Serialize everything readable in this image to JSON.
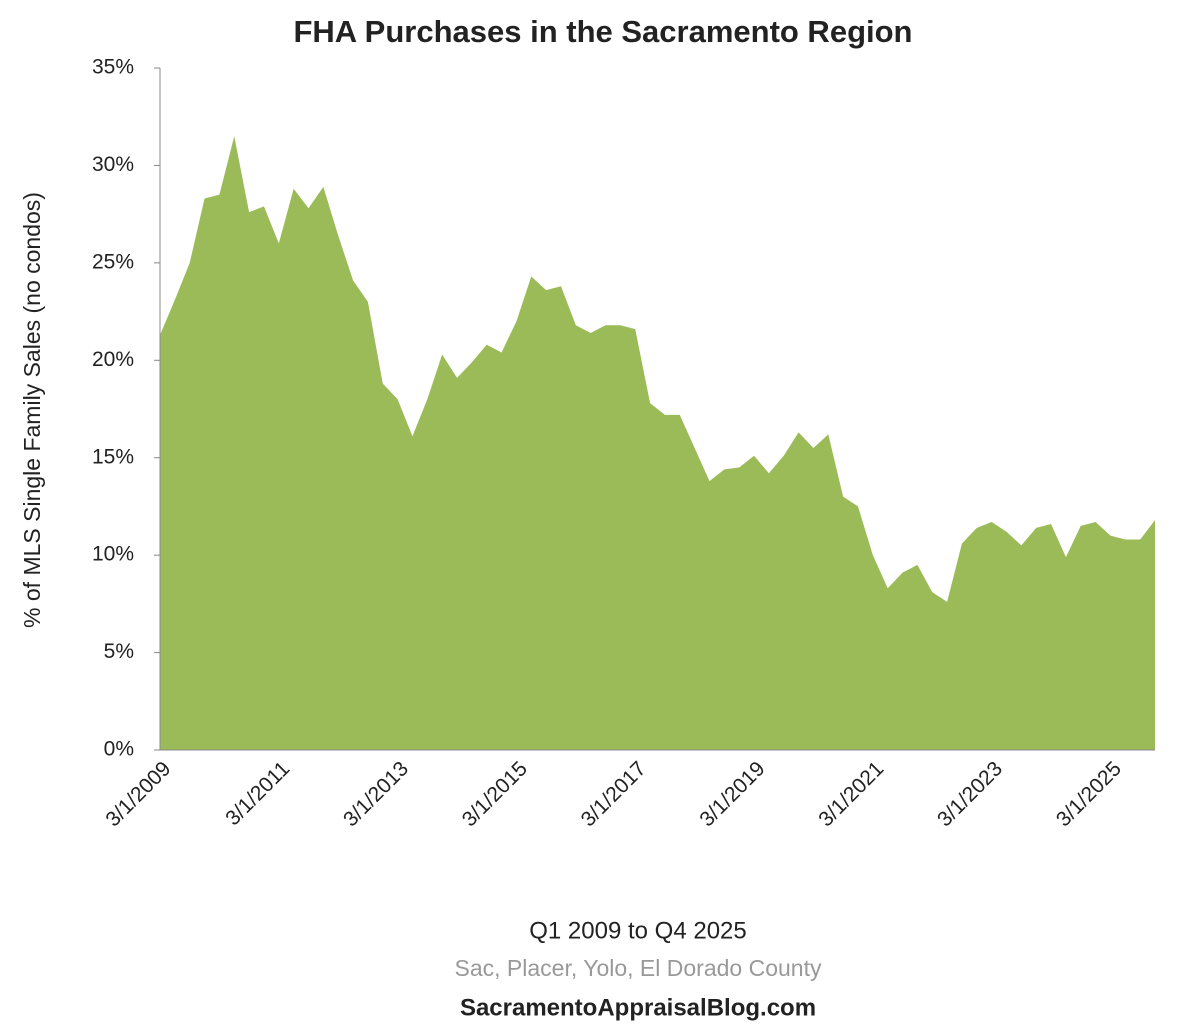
{
  "chart_data": {
    "type": "area",
    "title": "FHA Purchases in the Sacramento Region",
    "y_label": "% of MLS Single Family Sales (no condos)",
    "x_label": "Q1 2009 to Q4 2025",
    "subtitle": "Sac, Placer,  Yolo, El Dorado County",
    "source": "SacramentoAppraisalBlog.com",
    "color": "#9bbb59",
    "categories": [
      "3/1/2009",
      null,
      null,
      null,
      null,
      null,
      null,
      null,
      "3/1/2011",
      null,
      null,
      null,
      null,
      null,
      null,
      null,
      "3/1/2013",
      null,
      null,
      null,
      null,
      null,
      null,
      null,
      "3/1/2015",
      null,
      null,
      null,
      null,
      null,
      null,
      null,
      "3/1/2017",
      null,
      null,
      null,
      null,
      null,
      null,
      null,
      "3/1/2019",
      null,
      null,
      null,
      null,
      null,
      null,
      null,
      "3/1/2021",
      null,
      null,
      null,
      null,
      null,
      null,
      null,
      "3/1/2023",
      null,
      null,
      null,
      null,
      null,
      null,
      null,
      "3/1/2025",
      null,
      null,
      null
    ],
    "values": [
      21.3,
      23.1,
      25.0,
      28.3,
      28.5,
      31.5,
      27.6,
      27.9,
      26.0,
      28.8,
      27.8,
      28.9,
      26.4,
      24.1,
      23.0,
      18.8,
      18.0,
      16.1,
      18.0,
      20.3,
      19.1,
      19.9,
      20.8,
      20.4,
      22.0,
      24.3,
      23.6,
      23.8,
      21.8,
      21.4,
      21.8,
      21.8,
      21.6,
      17.8,
      17.2,
      17.2,
      15.5,
      13.8,
      14.4,
      14.5,
      15.1,
      14.2,
      15.1,
      16.3,
      15.5,
      16.2,
      13.0,
      12.5,
      10.0,
      8.3,
      9.1,
      9.5,
      8.1,
      7.6,
      10.6,
      11.4,
      11.7,
      11.2,
      10.5,
      11.4,
      11.6,
      9.9,
      11.5,
      11.7,
      11.0,
      10.8,
      10.8,
      11.8
    ],
    "ylim": [
      0,
      35
    ],
    "yticks": [
      {
        "value": 0,
        "label": "0%"
      },
      {
        "value": 5,
        "label": "5%"
      },
      {
        "value": 10,
        "label": "10%"
      },
      {
        "value": 15,
        "label": "15%"
      },
      {
        "value": 20,
        "label": "20%"
      },
      {
        "value": 25,
        "label": "25%"
      },
      {
        "value": 30,
        "label": "30%"
      },
      {
        "value": 35,
        "label": "35%"
      }
    ]
  }
}
